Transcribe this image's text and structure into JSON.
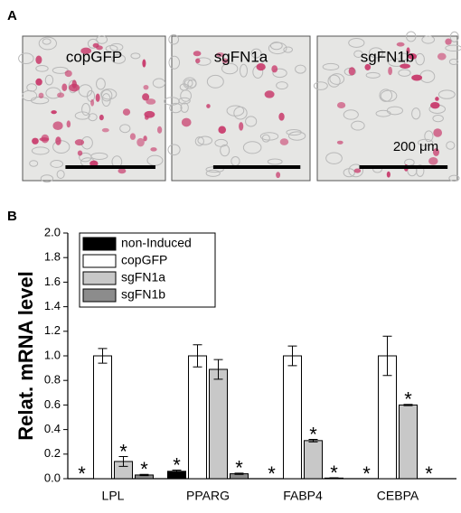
{
  "panel_a": {
    "label": "A",
    "images": [
      {
        "label": "copGFP"
      },
      {
        "label": "sgFN1a"
      },
      {
        "label": "sgFN1b"
      }
    ],
    "scale_bar_label": "200 μm"
  },
  "panel_b": {
    "label": "B"
  },
  "chart_data": {
    "type": "bar",
    "y_label": "Relat. mRNA level",
    "categories": [
      "LPL",
      "PPARG",
      "FABP4",
      "CEBPA"
    ],
    "series": [
      {
        "name": "non-Induced",
        "color": "#000000",
        "values": [
          0,
          0.06,
          0,
          0
        ],
        "errors": [
          0,
          0.01,
          0,
          0
        ],
        "significant": [
          true,
          true,
          true,
          true
        ]
      },
      {
        "name": "copGFP",
        "color": "#ffffff",
        "values": [
          1.0,
          1.0,
          1.0,
          1.0
        ],
        "errors": [
          0.06,
          0.09,
          0.08,
          0.16
        ],
        "significant": [
          false,
          false,
          false,
          false
        ]
      },
      {
        "name": "sgFN1a",
        "color": "#c8c8c8",
        "values": [
          0.14,
          0.89,
          0.31,
          0.6
        ],
        "errors": [
          0.04,
          0.08,
          0.01,
          0.005
        ],
        "significant": [
          true,
          false,
          true,
          true
        ]
      },
      {
        "name": "sgFN1b",
        "color": "#8c8c8c",
        "values": [
          0.03,
          0.04,
          0.005,
          0
        ],
        "errors": [
          0.005,
          0.005,
          0.002,
          0
        ],
        "significant": [
          true,
          true,
          true,
          true
        ]
      }
    ],
    "significance_label": "*",
    "ylim": [
      0,
      2.0
    ],
    "yticks": [
      {
        "value": 0,
        "label": "0.0"
      },
      0.2,
      0.4,
      0.6,
      0.8,
      {
        "value": 1,
        "label": "1.0"
      },
      1.2,
      1.4,
      1.6,
      1.8,
      {
        "value": 2,
        "label": "2.0"
      }
    ],
    "legend": "upper left"
  }
}
